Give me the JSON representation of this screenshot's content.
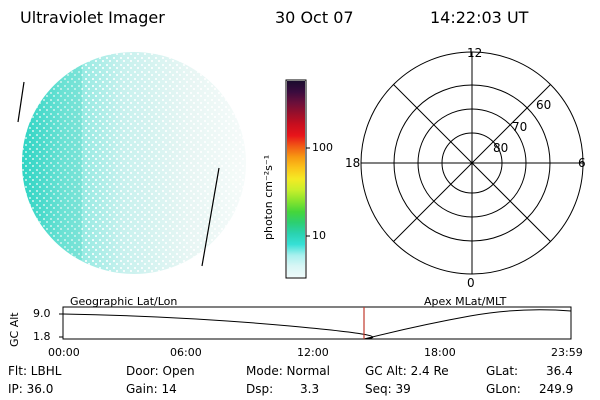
{
  "header": {
    "title": "Ultraviolet Imager",
    "date": "30 Oct 07",
    "time": "14:22:03 UT"
  },
  "colorbar": {
    "unit_label": "photon cm⁻²s⁻¹",
    "ticks": [
      "100",
      "10"
    ],
    "colors": [
      "#1b0d2e",
      "#3a0b3e",
      "#6b0f3a",
      "#9a0f2a",
      "#c80e1e",
      "#e8141a",
      "#f15a15",
      "#f79a12",
      "#fbc51a",
      "#f4ea24",
      "#c8ef2b",
      "#89e42d",
      "#45d63a",
      "#2ccf71",
      "#2ad2b0",
      "#36e0d6",
      "#a8f0ee",
      "#d8f6f5",
      "#eefafa"
    ]
  },
  "polar": {
    "labels": {
      "top": "12",
      "bottom": "0",
      "left": "18",
      "right": "6"
    },
    "rings": [
      "60",
      "70",
      "80"
    ]
  },
  "strip": {
    "ylabel": "GC Alt",
    "yticks": [
      "9.0",
      "1.8"
    ],
    "left_title": "Geographic Lat/Lon",
    "right_title": "Apex MLat/MLT",
    "xticks": [
      "00:00",
      "06:00",
      "12:00",
      "18:00",
      "23:59"
    ]
  },
  "info": {
    "flt": "Flt: LBHL",
    "ip": "IP: 36.0",
    "door": "Door: Open",
    "gain": "Gain: 14",
    "mode": "Mode: Normal",
    "dsp_label": "Dsp:",
    "dsp_value": "3.3",
    "gcalt": "GC Alt: 2.4 Re",
    "seq": "Seq: 39",
    "glat_label": "GLat:",
    "glat_value": "36.4",
    "glon_label": "GLon:",
    "glon_value": "249.9"
  }
}
